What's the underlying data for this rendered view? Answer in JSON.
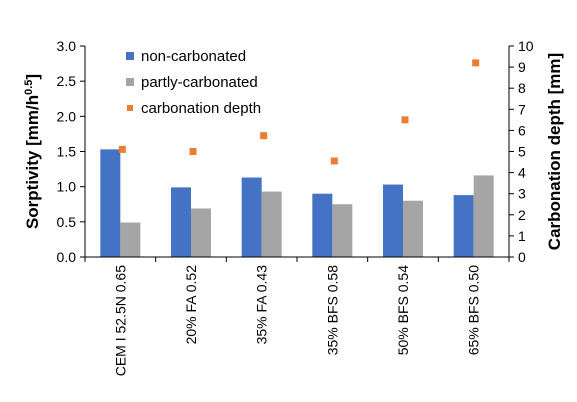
{
  "chart_data": {
    "type": "bar",
    "categories": [
      "CEM I 52.5N 0.65",
      "20% FA 0.52",
      "35% FA 0.43",
      "35% BFS 0.58",
      "50% BFS 0.54",
      "65% BFS 0.50"
    ],
    "series": [
      {
        "name": "non-carbonated",
        "axis": "left",
        "kind": "bar",
        "color": "#4472C4",
        "values": [
          1.53,
          0.99,
          1.13,
          0.9,
          1.03,
          0.88
        ]
      },
      {
        "name": "partly-carbonated",
        "axis": "left",
        "kind": "bar",
        "color": "#A5A5A5",
        "values": [
          0.49,
          0.69,
          0.93,
          0.75,
          0.8,
          1.16
        ]
      },
      {
        "name": "carbonation depth",
        "axis": "right",
        "kind": "scatter",
        "color": "#ED7D31",
        "values": [
          5.1,
          5.0,
          5.75,
          4.55,
          6.5,
          9.2
        ]
      }
    ],
    "ylabel_left": "Sorptivity [mm/h",
    "ylabel_left_sup": "0.5",
    "ylabel_left_close": "]",
    "ylabel_right": "Carbonation depth [mm]",
    "ylim_left": [
      0,
      3.0
    ],
    "ylim_right": [
      0,
      10
    ],
    "yticks_left": [
      "0.0",
      "0.5",
      "1.0",
      "1.5",
      "2.0",
      "2.5",
      "3.0"
    ],
    "yticks_right": [
      "0",
      "1",
      "2",
      "3",
      "4",
      "5",
      "6",
      "7",
      "8",
      "9",
      "10"
    ],
    "grid": false,
    "legend_position": "top-left"
  }
}
